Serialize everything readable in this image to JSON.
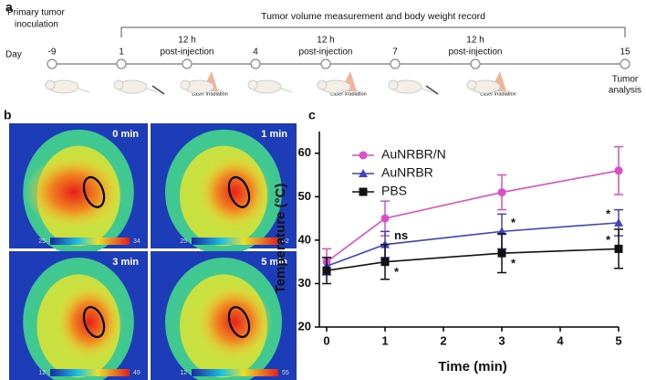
{
  "panel_a": {
    "label": "a",
    "inoculation": [
      "Primary tumor",
      "inoculation"
    ],
    "record": "Tumor volume measurement and body weight record",
    "day_label": "Day",
    "days": [
      "-9",
      "1",
      "4",
      "7",
      "15"
    ],
    "injection": [
      "12 h",
      "post-injection"
    ],
    "laser": "Laser irradiation",
    "analysis": [
      "Tumor",
      "analysis"
    ]
  },
  "panel_b": {
    "label": "b",
    "images": [
      {
        "time": "0 min",
        "scale": [
          "25",
          "34"
        ]
      },
      {
        "time": "1 min",
        "scale": [
          "25",
          "42"
        ]
      },
      {
        "time": "3 min",
        "scale": [
          "12",
          "49"
        ]
      },
      {
        "time": "5 min",
        "scale": [
          "12",
          "55"
        ]
      }
    ]
  },
  "chart_data": {
    "type": "line",
    "panel_label": "c",
    "x_label": "Time (min)",
    "y_label": "Temperature (°C)",
    "x": [
      0,
      1,
      3,
      5
    ],
    "xlim": [
      -0.125,
      5
    ],
    "xticks": [
      0,
      1,
      2,
      3,
      4,
      5
    ],
    "ylim": [
      20,
      65
    ],
    "yticks": [
      20,
      30,
      40,
      50,
      60
    ],
    "legend": "upper left",
    "series": [
      {
        "name": "AuNRBR/N",
        "color": "#dc4fc8",
        "marker": "circle",
        "values": [
          35,
          45,
          51,
          56
        ],
        "errors": [
          3,
          4,
          4,
          5.5
        ],
        "point_labels": [
          null,
          null,
          null,
          null
        ]
      },
      {
        "name": "AuNRBR",
        "color": "#4040c8",
        "marker": "triangle",
        "values": [
          34,
          39,
          42,
          44
        ],
        "errors": [
          2,
          3,
          4,
          3
        ],
        "point_labels": [
          null,
          "ns",
          "*",
          "*"
        ]
      },
      {
        "name": "PBS",
        "color": "#111111",
        "marker": "square",
        "values": [
          33,
          35,
          37,
          38
        ],
        "errors": [
          3,
          4,
          4.5,
          4.5
        ],
        "point_labels": [
          null,
          "*",
          "*",
          "*"
        ]
      }
    ]
  }
}
